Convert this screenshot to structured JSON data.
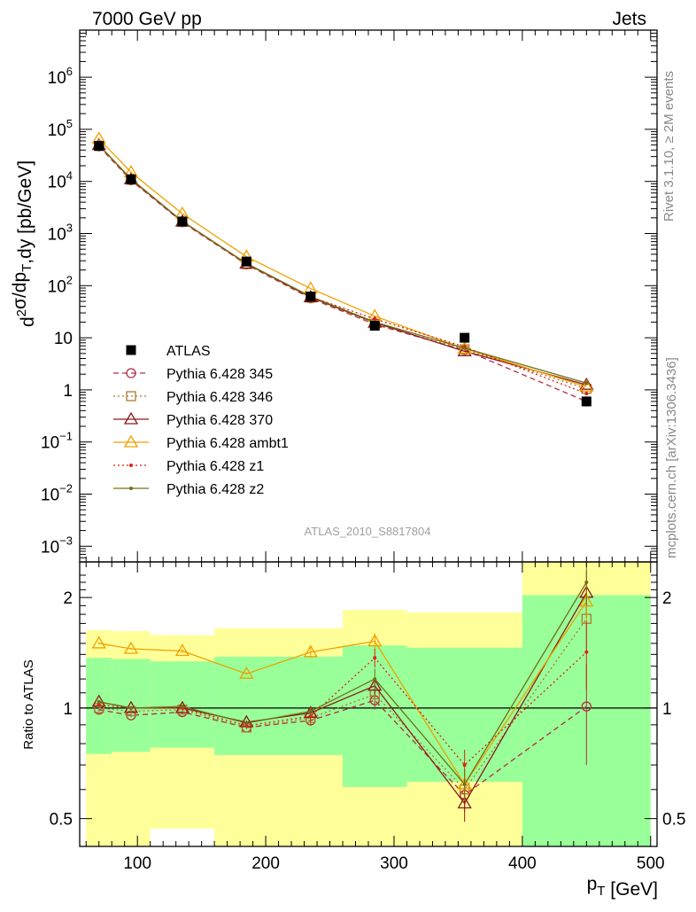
{
  "header": {
    "beam": "7000 GeV pp",
    "process": "Jets",
    "side_rivet": "Rivet 3.1.10, ≥ 2M events",
    "side_ref": "mcplots.cern.ch [arXiv:1306.3436]",
    "analysis_id": "ATLAS_2010_S8817804"
  },
  "axes": {
    "ylabel_top": "d²σ/dp_T,dy [pb/GeV]",
    "ylabel_bottom": "Ratio to ATLAS",
    "xlabel": "p_T [GeV]"
  },
  "colors": {
    "data": "#000000",
    "band_inner": "#99ff99",
    "band_outer": "#ffff99",
    "p345": "#b03040",
    "p346": "#b07830",
    "p370": "#8b1a1a",
    "ambt1": "#f0a000",
    "z1": "#dd2211",
    "z2": "#707018"
  },
  "chart_data": [
    {
      "type": "line",
      "panel": "main",
      "xlim": [
        55,
        505
      ],
      "ylim": [
        0.0005,
        8000000
      ],
      "y_scale": "log",
      "x_ticks": [
        100,
        200,
        300,
        400,
        500
      ],
      "y_ticks": [
        {
          "v": 0.001,
          "m": "10",
          "e": "−3"
        },
        {
          "v": 0.01,
          "m": "10",
          "e": "−2"
        },
        {
          "v": 0.1,
          "m": "10",
          "e": "−1"
        },
        {
          "v": 1,
          "m": "1",
          "e": ""
        },
        {
          "v": 10,
          "m": "10",
          "e": ""
        },
        {
          "v": 100,
          "m": "10",
          "e": "2"
        },
        {
          "v": 1000,
          "m": "10",
          "e": "3"
        },
        {
          "v": 10000,
          "m": "10",
          "e": "4"
        },
        {
          "v": 100000,
          "m": "10",
          "e": "5"
        },
        {
          "v": 1000000,
          "m": "10",
          "e": "6"
        }
      ],
      "legend_position": "left-middle",
      "data_series": {
        "name": "ATLAS",
        "x": [
          70,
          95,
          135,
          185,
          235,
          285,
          355,
          450
        ],
        "y": [
          48000,
          11000,
          1700,
          290,
          62,
          17,
          10,
          0.6
        ]
      },
      "series": [
        {
          "name": "Pythia 6.428 345",
          "key": "p345",
          "style": "dashed",
          "marker": "circle",
          "x": [
            70,
            95,
            135,
            185,
            235,
            285,
            355,
            450
          ],
          "y": [
            47000,
            10500,
            1650,
            255,
            57,
            18,
            5.8,
            0.6
          ]
        },
        {
          "name": "Pythia 6.428 346",
          "key": "p346",
          "style": "dotted",
          "marker": "square",
          "x": [
            70,
            95,
            135,
            185,
            235,
            285,
            355,
            450
          ],
          "y": [
            48000,
            10800,
            1680,
            258,
            59,
            18.5,
            6.0,
            1.05
          ]
        },
        {
          "name": "Pythia 6.428 370",
          "key": "p370",
          "style": "solid",
          "marker": "triangle",
          "x": [
            70,
            95,
            135,
            185,
            235,
            285,
            355,
            450
          ],
          "y": [
            50000,
            11000,
            1700,
            265,
            60,
            19.5,
            5.5,
            1.25
          ]
        },
        {
          "name": "Pythia 6.428 ambt1",
          "key": "ambt1",
          "style": "solid",
          "marker": "triangle",
          "x": [
            70,
            95,
            135,
            185,
            235,
            285,
            355,
            450
          ],
          "y": [
            66000,
            15000,
            2400,
            360,
            88,
            26,
            6.2,
            1.15
          ]
        },
        {
          "name": "Pythia 6.428 z1",
          "key": "z1",
          "style": "dotted",
          "marker": "dot",
          "x": [
            70,
            95,
            135,
            185,
            235,
            285,
            355,
            450
          ],
          "y": [
            50000,
            11200,
            1720,
            262,
            61,
            23,
            6.7,
            0.85
          ]
        },
        {
          "name": "Pythia 6.428 z2",
          "key": "z2",
          "style": "solid",
          "marker": "dot",
          "x": [
            70,
            95,
            135,
            185,
            235,
            285,
            355,
            450
          ],
          "y": [
            50000,
            11200,
            1720,
            268,
            62,
            20,
            6.3,
            1.35
          ]
        }
      ]
    },
    {
      "type": "line",
      "panel": "ratio",
      "xlim": [
        55,
        505
      ],
      "ylim": [
        0.42,
        2.5
      ],
      "y_scale": "log",
      "y_ticks": [
        {
          "v": 0.5,
          "label": "0.5"
        },
        {
          "v": 1,
          "label": "1"
        },
        {
          "v": 2,
          "label": "2"
        }
      ],
      "reference_line": 1,
      "bands": [
        {
          "x0": 60,
          "x1": 80,
          "inner": [
            0.75,
            1.37
          ],
          "outer": [
            0.36,
            1.63
          ]
        },
        {
          "x0": 80,
          "x1": 110,
          "inner": [
            0.76,
            1.36
          ],
          "outer": [
            0.37,
            1.62
          ]
        },
        {
          "x0": 110,
          "x1": 160,
          "inner": [
            0.78,
            1.34
          ],
          "outer": [
            0.47,
            1.58
          ]
        },
        {
          "x0": 160,
          "x1": 260,
          "inner": [
            0.745,
            1.38
          ],
          "outer": [
            0.34,
            1.65
          ]
        },
        {
          "x0": 260,
          "x1": 310,
          "inner": [
            0.61,
            1.48
          ],
          "outer": [
            0.34,
            1.85
          ]
        },
        {
          "x0": 310,
          "x1": 400,
          "inner": [
            0.63,
            1.46
          ],
          "outer": [
            0.34,
            1.82
          ]
        },
        {
          "x0": 400,
          "x1": 500,
          "inner": [
            0.34,
            2.03
          ],
          "outer": [
            0.34,
            2.6
          ]
        }
      ],
      "series": [
        {
          "name": "Pythia 6.428 345",
          "key": "p345",
          "style": "dashed",
          "marker": "circle",
          "x": [
            70,
            95,
            135,
            185,
            235,
            285,
            355,
            450
          ],
          "y": [
            0.99,
            0.955,
            0.975,
            0.885,
            0.925,
            1.05,
            0.58,
            1.01
          ],
          "err": [
            0.01,
            0.01,
            0.01,
            0.01,
            0.03,
            0.06,
            0.06,
            0.31
          ]
        },
        {
          "name": "Pythia 6.428 346",
          "key": "p346",
          "style": "dotted",
          "marker": "square",
          "x": [
            70,
            95,
            135,
            185,
            235,
            285,
            355,
            450
          ],
          "y": [
            1.0,
            0.98,
            0.99,
            0.885,
            0.94,
            1.09,
            0.6,
            1.75
          ],
          "err": [
            0.01,
            0.01,
            0.01,
            0.01,
            0.03,
            0.06,
            0.06,
            0.3
          ]
        },
        {
          "name": "Pythia 6.428 370",
          "key": "p370",
          "style": "solid",
          "marker": "triangle",
          "x": [
            70,
            95,
            135,
            185,
            235,
            285,
            355,
            450
          ],
          "y": [
            1.04,
            1.0,
            1.0,
            0.915,
            0.97,
            1.15,
            0.55,
            2.06
          ],
          "err": [
            0.01,
            0.01,
            0.01,
            0.01,
            0.03,
            0.06,
            0.06,
            0.3
          ]
        },
        {
          "name": "Pythia 6.428 ambt1",
          "key": "ambt1",
          "style": "solid",
          "marker": "triangle",
          "x": [
            70,
            95,
            135,
            185,
            235,
            285,
            355,
            450
          ],
          "y": [
            1.5,
            1.45,
            1.43,
            1.24,
            1.42,
            1.52,
            0.62,
            1.95
          ],
          "err": [
            0.01,
            0.01,
            0.02,
            0.01,
            0.05,
            0.08,
            0.06,
            0.3
          ]
        },
        {
          "name": "Pythia 6.428 z1",
          "key": "z1",
          "style": "dotted",
          "marker": "dot",
          "x": [
            70,
            95,
            135,
            185,
            235,
            285,
            355,
            450
          ],
          "y": [
            1.02,
            1.0,
            1.0,
            0.895,
            0.95,
            1.37,
            0.7,
            1.42
          ],
          "err": [
            0.01,
            0.01,
            0.01,
            0.01,
            0.03,
            0.08,
            0.07,
            0.3
          ]
        },
        {
          "name": "Pythia 6.428 z2",
          "key": "z2",
          "style": "solid",
          "marker": "dot",
          "x": [
            70,
            95,
            135,
            185,
            235,
            285,
            355,
            450
          ],
          "y": [
            1.04,
            1.0,
            1.01,
            0.91,
            0.98,
            1.2,
            0.62,
            2.2
          ],
          "err": [
            0.01,
            0.01,
            0.01,
            0.01,
            0.03,
            0.08,
            0.06,
            0.3
          ]
        }
      ]
    }
  ]
}
